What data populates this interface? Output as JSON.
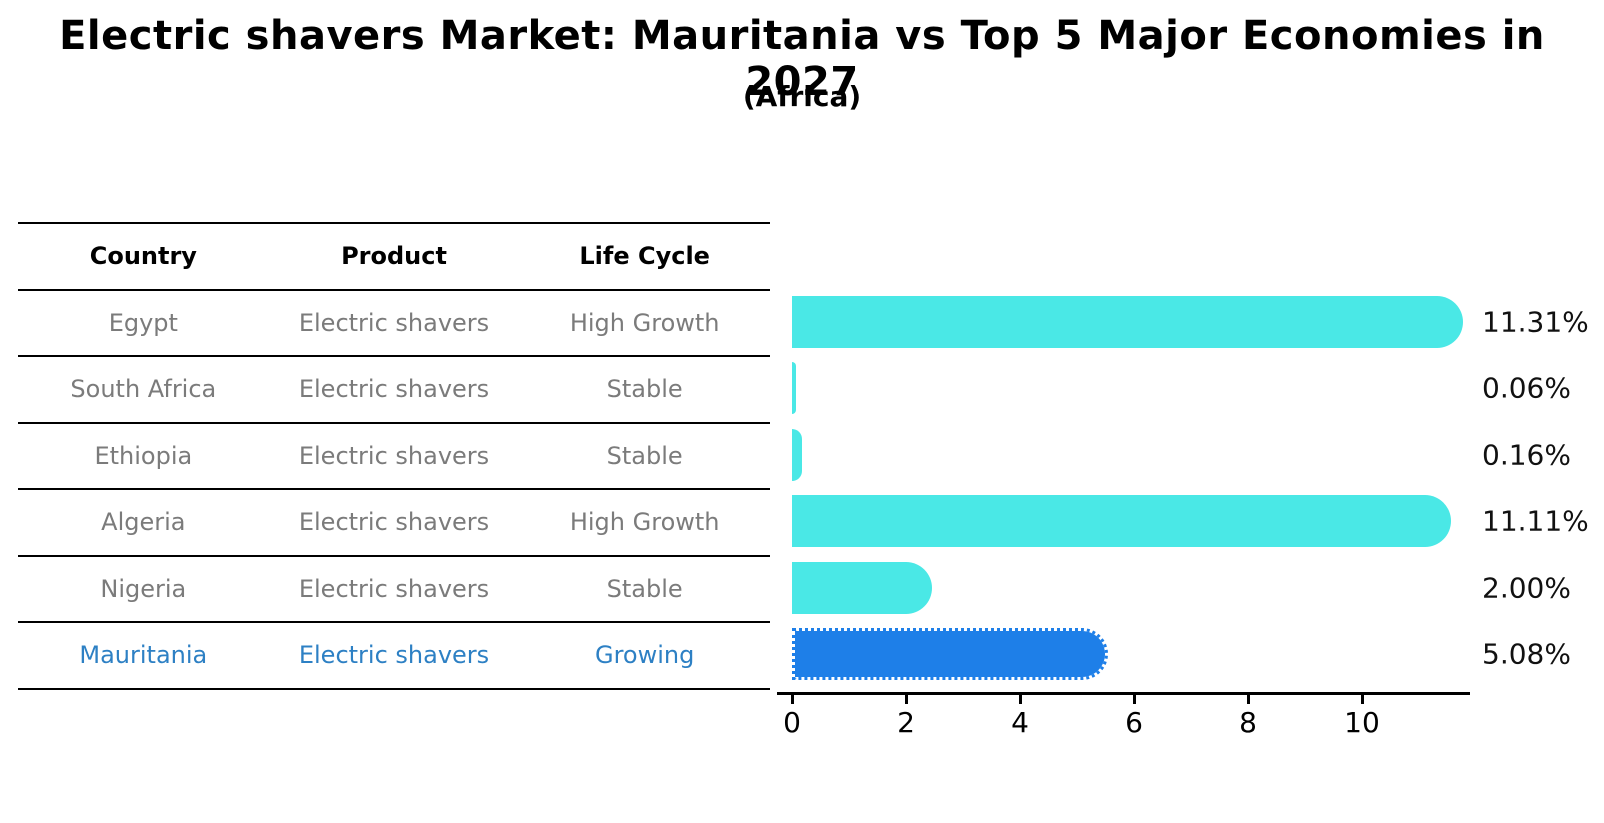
{
  "title": "Electric shavers Market: Mauritania vs Top 5 Major Economies in 2027",
  "subtitle": "(Africa)",
  "table": {
    "headers": [
      "Country",
      "Product",
      "Life Cycle"
    ],
    "rows": [
      {
        "country": "Egypt",
        "product": "Electric shavers",
        "life_cycle": "High Growth",
        "highlight": false
      },
      {
        "country": "South Africa",
        "product": "Electric shavers",
        "life_cycle": "Stable",
        "highlight": false
      },
      {
        "country": "Ethiopia",
        "product": "Electric shavers",
        "life_cycle": "Stable",
        "highlight": false
      },
      {
        "country": "Algeria",
        "product": "Electric shavers",
        "life_cycle": "High Growth",
        "highlight": false
      },
      {
        "country": "Nigeria",
        "product": "Electric shavers",
        "life_cycle": "Stable",
        "highlight": false
      },
      {
        "country": "Mauritania",
        "product": "Electric shavers",
        "life_cycle": "Growing",
        "highlight": true
      }
    ]
  },
  "chart_data": {
    "type": "bar",
    "orientation": "horizontal",
    "categories": [
      "Egypt",
      "South Africa",
      "Ethiopia",
      "Algeria",
      "Nigeria",
      "Mauritania"
    ],
    "values": [
      11.31,
      0.06,
      0.16,
      11.11,
      2.0,
      5.08
    ],
    "value_labels": [
      "11.31%",
      "0.06%",
      "0.16%",
      "11.11%",
      "2.00%",
      "5.08%"
    ],
    "x_ticks": [
      0,
      2,
      4,
      6,
      8,
      10
    ],
    "xlim": [
      0,
      11.9
    ],
    "grid": false,
    "legend": false,
    "bar_color": "#4ae8e6",
    "highlight_bar_color": "#1e7fe8",
    "highlight_index": 5,
    "highlight_text_color": "#2d80c4"
  },
  "colors": {
    "title_text": "#000000",
    "table_text": "#7b7b7b",
    "table_line": "#000000",
    "value_label_text": "#111111"
  }
}
